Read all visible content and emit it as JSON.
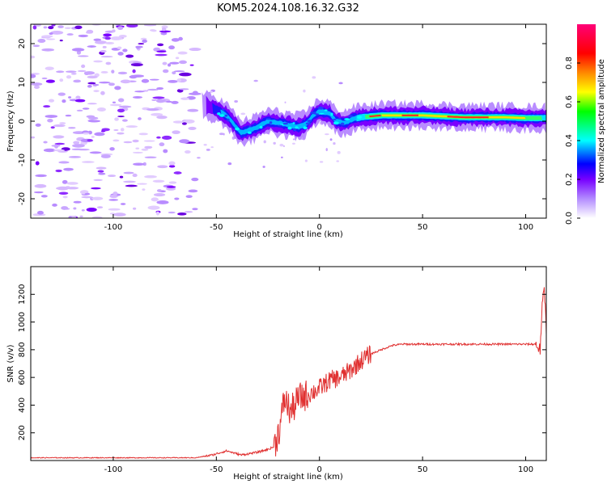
{
  "title": "KOM5.2024.108.16.32.G32",
  "spectrogram": {
    "type": "heatmap",
    "xlabel": "Height of straight line (km)",
    "ylabel": "Frequency (Hz)",
    "xlim": [
      -140,
      110
    ],
    "ylim": [
      -25,
      25
    ],
    "xticks": [
      -100,
      -50,
      0,
      50,
      100
    ],
    "yticks": [
      -20,
      -10,
      0,
      10,
      20
    ],
    "ridge": [
      [
        -55,
        4
      ],
      [
        -50,
        3
      ],
      [
        -45,
        1.5
      ],
      [
        -42,
        -0.5
      ],
      [
        -38,
        -3
      ],
      [
        -35,
        -2.5
      ],
      [
        -30,
        -1.5
      ],
      [
        -25,
        0
      ],
      [
        -20,
        -0.5
      ],
      [
        -15,
        -1
      ],
      [
        -10,
        -1.5
      ],
      [
        -6,
        -0.5
      ],
      [
        -3,
        1.5
      ],
      [
        0,
        2.5
      ],
      [
        5,
        2
      ],
      [
        8,
        0
      ],
      [
        12,
        -0.5
      ],
      [
        16,
        0.5
      ],
      [
        20,
        1
      ],
      [
        30,
        1.5
      ],
      [
        50,
        1.5
      ],
      [
        70,
        1
      ],
      [
        90,
        1
      ],
      [
        100,
        0.8
      ],
      [
        110,
        0.8
      ]
    ]
  },
  "colorbar": {
    "label": "Normalized spectral amplitude",
    "ticks": [
      "0.0",
      "0.2",
      "0.4",
      "0.6",
      "0.8"
    ],
    "tick_values": [
      0,
      0.2,
      0.4,
      0.6,
      0.8
    ],
    "colors": [
      "#ffffff",
      "#b38cff",
      "#7700ff",
      "#0000ff",
      "#00ffff",
      "#00ff00",
      "#ffff00",
      "#ff8800",
      "#ff0000",
      "#ff0077"
    ]
  },
  "snr": {
    "type": "line",
    "xlabel": "Height of straight line (km)",
    "ylabel": "SNR (v/v)",
    "xlim": [
      -140,
      110
    ],
    "ylim": [
      0,
      1400
    ],
    "xticks": [
      -100,
      -50,
      0,
      50,
      100
    ],
    "yticks": [
      200,
      400,
      600,
      800,
      1000,
      1200
    ],
    "color": "#e03030",
    "anchors": [
      [
        -140,
        20
      ],
      [
        -60,
        20
      ],
      [
        -52,
        40
      ],
      [
        -45,
        70
      ],
      [
        -38,
        40
      ],
      [
        -30,
        60
      ],
      [
        -25,
        80
      ],
      [
        -22,
        100
      ],
      [
        -19,
        250
      ],
      [
        -17,
        450
      ],
      [
        -14,
        350
      ],
      [
        -10,
        450
      ],
      [
        -5,
        480
      ],
      [
        0,
        520
      ],
      [
        5,
        580
      ],
      [
        10,
        600
      ],
      [
        15,
        650
      ],
      [
        20,
        720
      ],
      [
        25,
        770
      ],
      [
        30,
        800
      ],
      [
        35,
        830
      ],
      [
        40,
        840
      ],
      [
        50,
        840
      ],
      [
        60,
        840
      ],
      [
        80,
        840
      ],
      [
        90,
        840
      ],
      [
        100,
        840
      ],
      [
        105,
        840
      ],
      [
        107,
        800
      ],
      [
        108,
        1100
      ],
      [
        109,
        1250
      ],
      [
        110,
        950
      ]
    ]
  }
}
